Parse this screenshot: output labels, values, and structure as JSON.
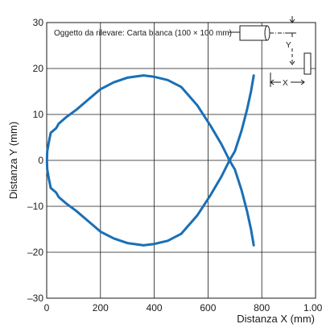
{
  "chart_data": {
    "type": "line",
    "title": "",
    "xlabel": "Distanza X (mm)",
    "ylabel": "Distanza Y (mm)",
    "xlim": [
      0,
      1000
    ],
    "ylim": [
      -30,
      30
    ],
    "x_ticks": [
      0,
      200,
      400,
      600,
      800,
      1000
    ],
    "x_tick_labels": [
      "0",
      "200",
      "400",
      "600",
      "800",
      "1.000"
    ],
    "y_ticks": [
      -30,
      -20,
      -10,
      0,
      10,
      20,
      30
    ],
    "y_tick_labels": [
      "–30",
      "–20",
      "–10",
      "0",
      "10",
      "20",
      "30"
    ],
    "grid": true,
    "line_color": "#1a6fb5",
    "annotation": "Oggetto da rilevare: Carta bianca (100 × 100 mm)",
    "diagram_labels": {
      "y": "Y",
      "x": "X"
    },
    "series": [
      {
        "name": "",
        "x": [
          770,
          760,
          745,
          725,
          700,
          680,
          650,
          610,
          560,
          500,
          450,
          400,
          360,
          300,
          250,
          200,
          150,
          110,
          75,
          45,
          35,
          15,
          8,
          2,
          1,
          2,
          8,
          15,
          35,
          45,
          75,
          110,
          150,
          200,
          250,
          300,
          360,
          400,
          450,
          500,
          560,
          610,
          650,
          680,
          700,
          725,
          745,
          760,
          770
        ],
        "y": [
          -18.5,
          -15,
          -11,
          -6.5,
          -2,
          0,
          3.5,
          7.5,
          12,
          16,
          17.5,
          18.2,
          18.5,
          18,
          17,
          15.5,
          13,
          11,
          9.5,
          8,
          7,
          6,
          4,
          2,
          0,
          -2,
          -4,
          -6,
          -7,
          -8,
          -9.5,
          -11,
          -13,
          -15.5,
          -17,
          -18,
          -18.5,
          -18.2,
          -17.5,
          -16,
          -12,
          -7.5,
          -3.5,
          0,
          2,
          6.5,
          11,
          15,
          18.5
        ]
      }
    ]
  }
}
